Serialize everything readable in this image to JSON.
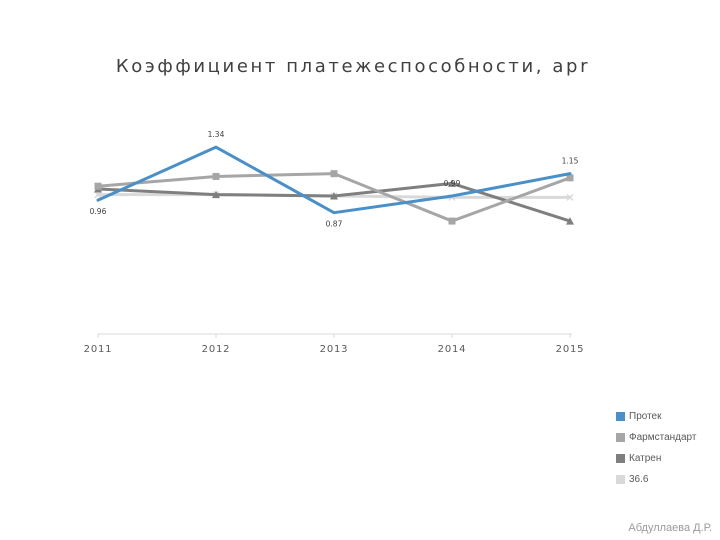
{
  "chart_data": {
    "type": "line",
    "title": "Коэффициент платежеспособности, apr",
    "x": [
      "2011",
      "2012",
      "2013",
      "2014",
      "2015"
    ],
    "xlabel": "",
    "ylabel": "",
    "ylim": [
      0.0,
      1.75
    ],
    "grid": false,
    "legend_position": "bottom-right",
    "series": [
      {
        "name": "Протек",
        "color": "#4a90c8",
        "marker": "none",
        "values": [
          0.96,
          1.34,
          0.87,
          0.99,
          1.15
        ],
        "labels": [
          "0.96",
          "1.34",
          "0.87",
          "0.99",
          "1.15"
        ]
      },
      {
        "name": "Фармстандарт",
        "color": "#a6a6a6",
        "marker": "square",
        "values": [
          1.06,
          1.13,
          1.15,
          0.81,
          1.12
        ],
        "labels": [
          "",
          "",
          "",
          "",
          ""
        ]
      },
      {
        "name": "Катрен",
        "color": "#7f7f7f",
        "marker": "triangle",
        "values": [
          1.04,
          1.0,
          0.99,
          1.08,
          0.81
        ],
        "labels": [
          "",
          "",
          "",
          "",
          ""
        ]
      },
      {
        "name": "36.6",
        "color": "#d9d9d9",
        "marker": "x",
        "values": [
          1.0,
          1.0,
          0.99,
          0.98,
          0.98
        ],
        "labels": [
          "",
          "",
          "",
          "",
          ""
        ]
      }
    ]
  },
  "footer": {
    "text": "Абдуллаева Д.Р."
  }
}
